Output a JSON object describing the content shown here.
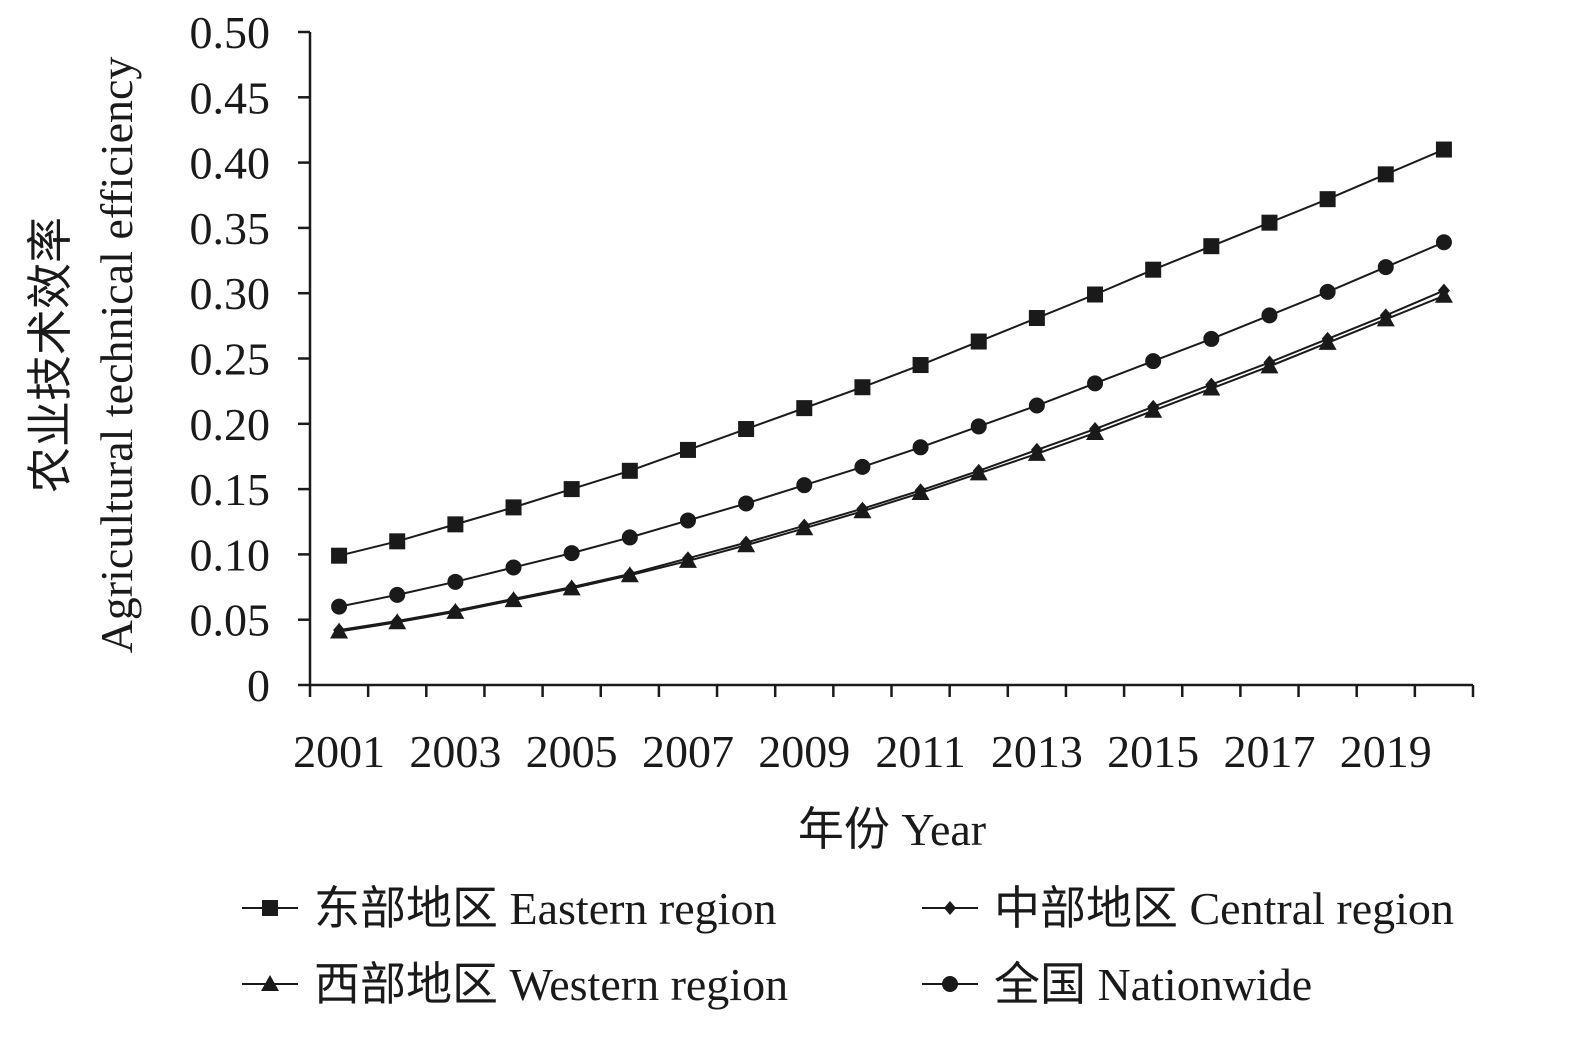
{
  "chart_data": {
    "type": "line",
    "title": "",
    "xlabel": "年份 Year",
    "ylabel_cn": "农业技术效率",
    "ylabel_en": "Agricultural technical efficiency",
    "x": [
      2001,
      2002,
      2003,
      2004,
      2005,
      2006,
      2007,
      2008,
      2009,
      2010,
      2011,
      2012,
      2013,
      2014,
      2015,
      2016,
      2017,
      2018,
      2019,
      2020
    ],
    "x_tick_labels": [
      "2001",
      "2003",
      "2005",
      "2007",
      "2009",
      "2011",
      "2013",
      "2015",
      "2017",
      "2019"
    ],
    "y_tick_labels": [
      "0",
      "0.05",
      "0.10",
      "0.15",
      "0.20",
      "0.25",
      "0.30",
      "0.35",
      "0.40",
      "0.45",
      "0.50"
    ],
    "xlim": [
      2000.5,
      2020.5
    ],
    "ylim": [
      0,
      0.5
    ],
    "grid": false,
    "legend_position": "bottom",
    "series": [
      {
        "name": "东部地区 Eastern region",
        "marker": "square",
        "values": [
          0.099,
          0.11,
          0.123,
          0.136,
          0.15,
          0.164,
          0.18,
          0.196,
          0.212,
          0.228,
          0.245,
          0.263,
          0.281,
          0.299,
          0.318,
          0.336,
          0.354,
          0.372,
          0.391,
          0.41
        ]
      },
      {
        "name": "中部地区 Central region",
        "marker": "diamond",
        "values": [
          0.042,
          0.049,
          0.057,
          0.066,
          0.075,
          0.085,
          0.097,
          0.109,
          0.122,
          0.135,
          0.149,
          0.164,
          0.18,
          0.196,
          0.213,
          0.23,
          0.247,
          0.265,
          0.283,
          0.302
        ]
      },
      {
        "name": "西部地区 Western region",
        "marker": "triangle",
        "values": [
          0.041,
          0.048,
          0.056,
          0.065,
          0.074,
          0.084,
          0.095,
          0.107,
          0.12,
          0.133,
          0.147,
          0.162,
          0.177,
          0.193,
          0.21,
          0.227,
          0.244,
          0.262,
          0.28,
          0.298
        ]
      },
      {
        "name": "全国 Nationwide",
        "marker": "circle",
        "values": [
          0.06,
          0.069,
          0.079,
          0.09,
          0.101,
          0.113,
          0.126,
          0.139,
          0.153,
          0.167,
          0.182,
          0.198,
          0.214,
          0.231,
          0.248,
          0.265,
          0.283,
          0.301,
          0.32,
          0.339
        ]
      }
    ],
    "colors": {
      "line": "#1a1a1a",
      "axis": "#1a1a1a"
    }
  }
}
